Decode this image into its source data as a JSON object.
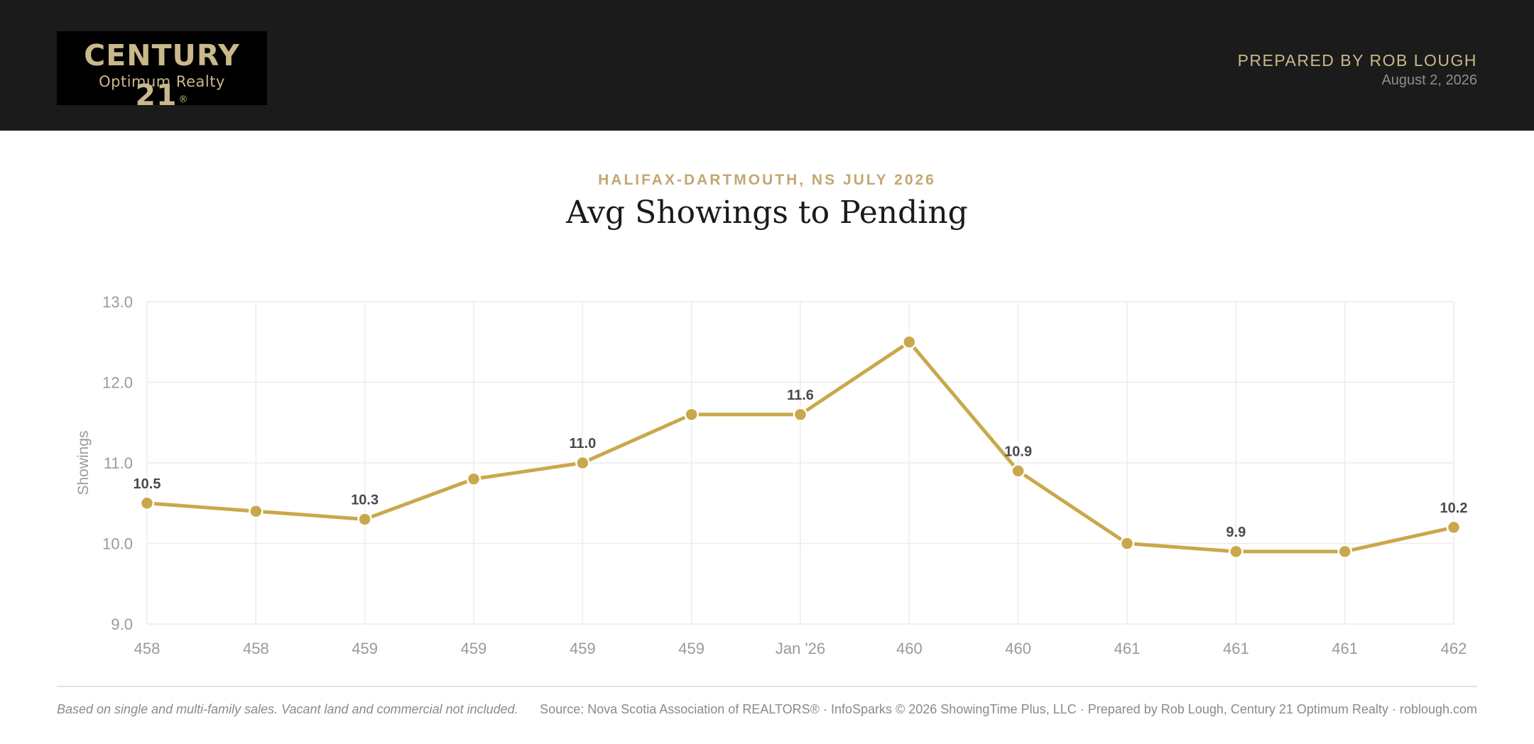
{
  "header": {
    "logo_main": "CENTURY 21",
    "logo_reg": "®",
    "logo_sub": "Optimum Realty",
    "prepared_by": "PREPARED BY ROB LOUGH",
    "date": "August 2, 2026"
  },
  "colors": {
    "header_bg": "#1b1b1b",
    "gold": "#c9a84c",
    "eyebrow": "#c2a871",
    "logo_text": "#c9b88a"
  },
  "chart_data": {
    "type": "line",
    "subtitle": "HALIFAX-DARTMOUTH, NS JULY 2026",
    "title": "Avg Showings to Pending",
    "ylabel": "Showings",
    "xlabel": "",
    "ylim": [
      9.0,
      13.0
    ],
    "yticks": [
      "9.0",
      "10.0",
      "11.0",
      "12.0",
      "13.0"
    ],
    "categories": [
      "458",
      "458",
      "459",
      "459",
      "459",
      "459",
      "Jan '26",
      "460",
      "460",
      "461",
      "461",
      "461",
      "462"
    ],
    "values": [
      10.5,
      10.4,
      10.3,
      10.8,
      11.0,
      11.6,
      11.6,
      12.5,
      10.9,
      10.0,
      9.9,
      9.9,
      10.2
    ],
    "data_labels": [
      "10.5",
      "",
      "10.3",
      "",
      "11.0",
      "",
      "11.6",
      "",
      "10.9",
      "",
      "9.9",
      "",
      "10.2"
    ],
    "grid": true,
    "legend": "none"
  },
  "footer": {
    "note": "Based on single and multi-family sales. Vacant land and commercial not included.",
    "source": "Source: Nova Scotia Association of REALTORS® · InfoSparks © 2026 ShowingTime Plus, LLC · Prepared by Rob Lough, Century 21 Optimum Realty · roblough.com"
  }
}
